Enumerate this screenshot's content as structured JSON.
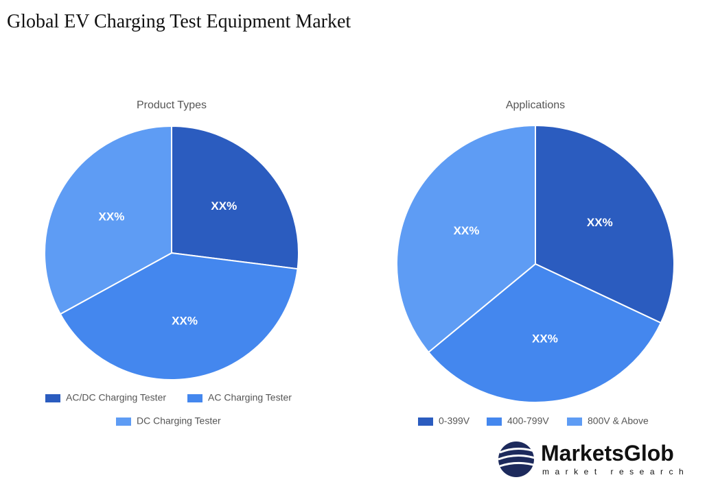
{
  "title": "Global EV Charging Test Equipment Market",
  "logo": {
    "name": "MarketsGlob",
    "tagline": "market research"
  },
  "chart_data": [
    {
      "type": "pie",
      "title": "Product Types",
      "categories": [
        "AC/DC Charging Tester",
        "AC Charging Tester",
        "DC Charging Tester"
      ],
      "values": [
        27,
        40,
        33
      ],
      "value_labels": [
        "XX%",
        "XX%",
        "XX%"
      ],
      "colors": [
        "#2b5cbf",
        "#4487ee",
        "#5e9cf4"
      ]
    },
    {
      "type": "pie",
      "title": "Applications",
      "categories": [
        "0-399V",
        "400-799V",
        "800V & Above"
      ],
      "values": [
        32,
        32,
        36
      ],
      "value_labels": [
        "XX%",
        "XX%",
        "XX%"
      ],
      "colors": [
        "#2b5cbf",
        "#4487ee",
        "#5e9cf4"
      ]
    }
  ]
}
